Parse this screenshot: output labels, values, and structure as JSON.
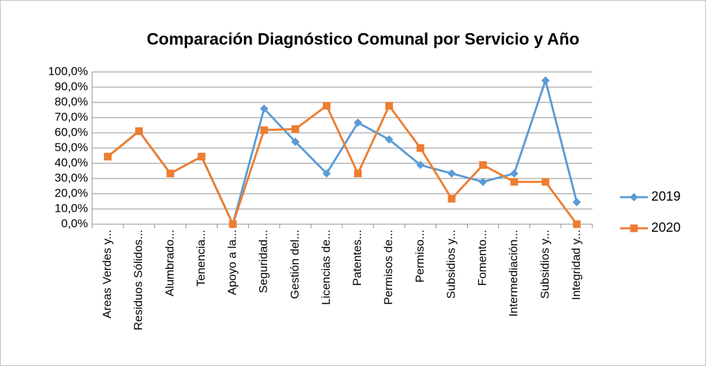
{
  "chart_data": {
    "type": "line",
    "title": "Comparación  Diagnóstico  Comunal  por  Servicio  y  Año",
    "categories": [
      "Areas Verdes y...",
      "Residuos Sólidos...",
      "Alumbrado...",
      "Tenencia...",
      "Apoyo a la...",
      "Seguridad...",
      "Gestión del...",
      "Licencias de...",
      "Patentes...",
      "Permisos de...",
      "Permiso...",
      "Subsidios y...",
      "Fomento...",
      "Intermediación...",
      "Subsidios y...",
      "Integridad y..."
    ],
    "series": [
      {
        "name": "2019",
        "color": "#5b9bd5",
        "marker": "diamond",
        "values": [
          44.4,
          61.1,
          33.3,
          44.4,
          0,
          75.9,
          54.1,
          33.3,
          66.7,
          55.6,
          38.9,
          33.3,
          27.8,
          33.3,
          94.4,
          14.5
        ]
      },
      {
        "name": "2020",
        "color": "#ed7d31",
        "marker": "square",
        "values": [
          44.4,
          61.1,
          33.3,
          44.4,
          0,
          61.8,
          62.5,
          77.8,
          33.3,
          77.8,
          50,
          16.7,
          38.9,
          27.8,
          27.8,
          0
        ]
      }
    ],
    "ylim": [
      0,
      100
    ],
    "yticks": [
      {
        "value": 0,
        "label": "0,0%"
      },
      {
        "value": 10,
        "label": "10,0%"
      },
      {
        "value": 20,
        "label": "20,0%"
      },
      {
        "value": 30,
        "label": "30,0%"
      },
      {
        "value": 40,
        "label": "40,0%"
      },
      {
        "value": 50,
        "label": "50,0%"
      },
      {
        "value": 60,
        "label": "60,0%"
      },
      {
        "value": 70,
        "label": "70,0%"
      },
      {
        "value": 80,
        "label": "80,0%"
      },
      {
        "value": 90,
        "label": "90,0%"
      },
      {
        "value": 100,
        "label": "100,0%"
      }
    ],
    "grid": true,
    "legend": "right"
  }
}
